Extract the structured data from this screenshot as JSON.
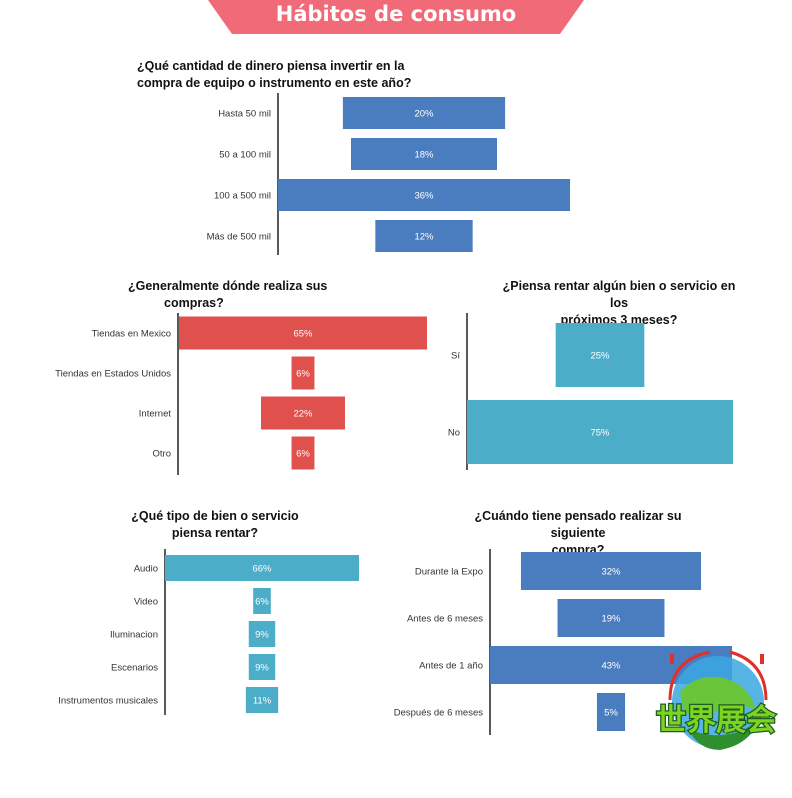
{
  "header": {
    "title": "Hábitos de consumo",
    "banner_color": "#f06a78"
  },
  "logo": {
    "text": "世界展会"
  },
  "chart_data": [
    {
      "id": "inversion",
      "type": "bar",
      "orientation": "horizontal",
      "title_lines": [
        "¿Qué cantidad de dinero piensa invertir en la",
        "compra de equipo o instrumento en este año?"
      ],
      "categories": [
        "Hasta 50 mil",
        "50 a 100 mil",
        "100 a 500 mil",
        "Más de 500 mil"
      ],
      "values": [
        20,
        18,
        36,
        12
      ],
      "labels": [
        "20%",
        "18%",
        "36%",
        "12%"
      ],
      "color": "#4a7dbf",
      "xlim": [
        0,
        36
      ]
    },
    {
      "id": "compras",
      "type": "bar",
      "orientation": "horizontal",
      "title_lines": [
        "¿Generalmente dónde  realiza sus",
        "compras?"
      ],
      "categories": [
        "Tiendas en Mexico",
        "Tiendas en Estados Unidos",
        "Internet",
        "Otro"
      ],
      "values": [
        65,
        6,
        22,
        6
      ],
      "labels": [
        "65%",
        "6%",
        "22%",
        "6%"
      ],
      "color": "#e0504c",
      "xlim": [
        0,
        65
      ]
    },
    {
      "id": "rentar",
      "type": "bar",
      "orientation": "horizontal",
      "title_lines": [
        "¿Piensa rentar algún bien o servicio en los",
        "próximos 3 meses?"
      ],
      "categories": [
        "Sí",
        "No"
      ],
      "values": [
        25,
        75
      ],
      "labels": [
        "25%",
        "75%"
      ],
      "color": "#4badc8",
      "xlim": [
        0,
        75
      ]
    },
    {
      "id": "tipo",
      "type": "bar",
      "orientation": "horizontal",
      "title_lines": [
        "¿Qué tipo de bien o servicio",
        "piensa rentar?"
      ],
      "categories": [
        "Audio",
        "Video",
        "Iluminacion",
        "Escenarios",
        "Instrumentos musicales"
      ],
      "values": [
        66,
        6,
        9,
        9,
        11
      ],
      "labels": [
        "66%",
        "6%",
        "9%",
        "9%",
        "11%"
      ],
      "color": "#4badc8",
      "xlim": [
        0,
        66
      ]
    },
    {
      "id": "siguiente",
      "type": "bar",
      "orientation": "horizontal",
      "title_lines": [
        "¿Cuándo tiene pensado realizar su siguiente",
        "compra?"
      ],
      "categories": [
        "Durante la Expo",
        "Antes de 6 meses",
        "Antes de 1 año",
        "Después de 6 meses"
      ],
      "values": [
        32,
        19,
        43,
        5
      ],
      "labels": [
        "32%",
        "19%",
        "43%",
        "5%"
      ],
      "color": "#4a7dbf",
      "xlim": [
        0,
        43
      ]
    }
  ]
}
